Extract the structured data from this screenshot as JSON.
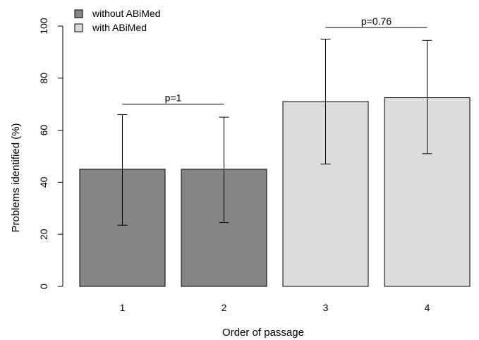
{
  "chart_data": {
    "type": "bar",
    "title": "",
    "xlabel": "Order of passage",
    "ylabel": "Problems identified (%)",
    "ylim": [
      0,
      100
    ],
    "yticks": [
      "0",
      "20",
      "40",
      "60",
      "80",
      "100"
    ],
    "grid": false,
    "legend_position": "top-left",
    "categories": [
      "1",
      "2",
      "3",
      "4"
    ],
    "values": [
      45,
      45,
      71,
      72.5
    ],
    "error_low": [
      23.5,
      24.5,
      47,
      51
    ],
    "error_high": [
      66,
      65,
      95,
      94.5
    ],
    "groups": [
      "without ABiMed",
      "without ABiMed",
      "with ABiMed",
      "with ABiMed"
    ],
    "legend": [
      {
        "name": "without ABiMed",
        "color": "#858585"
      },
      {
        "name": "with ABiMed",
        "color": "#dcdcdc"
      }
    ],
    "annotations": [
      {
        "text": "p=1",
        "from": 0,
        "to": 1,
        "y": 70
      },
      {
        "text": "p=0.76",
        "from": 2,
        "to": 3,
        "y": 99.5
      }
    ]
  }
}
